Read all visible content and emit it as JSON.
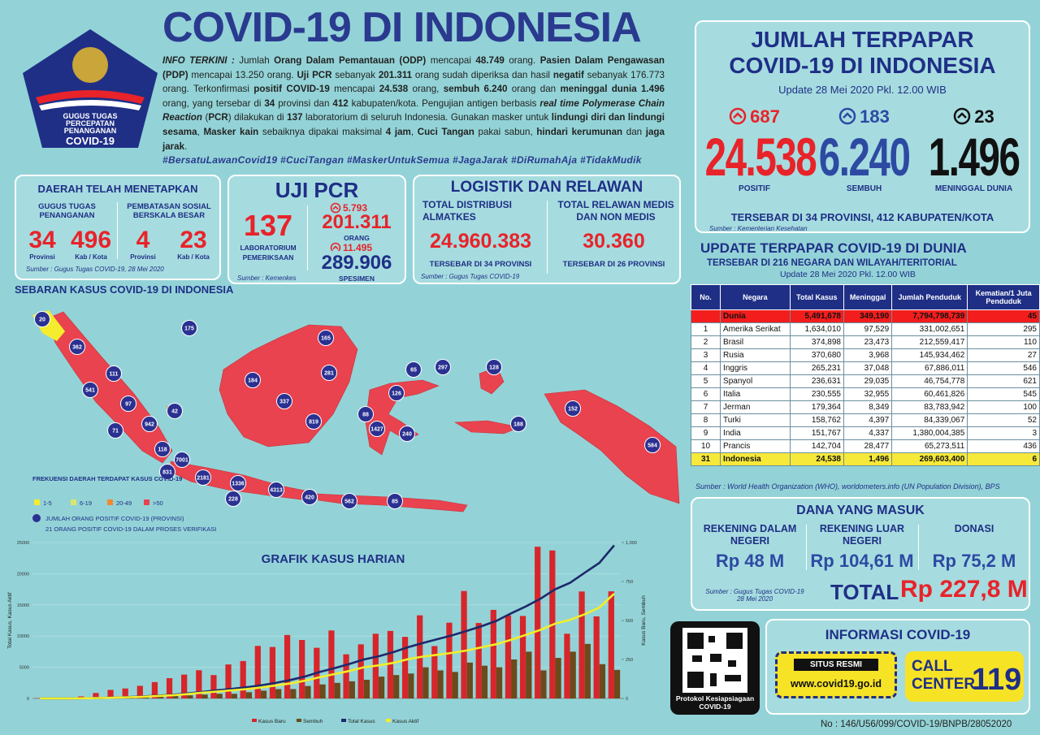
{
  "header": {
    "title": "COVID-19 DI INDONESIA",
    "logo": [
      "GUGUS TUGAS",
      "PERCEPATAN",
      "PENANGANAN",
      "COVID-19"
    ]
  },
  "info": {
    "segments": [
      {
        "t": "INFO TERKINI :",
        "b": true,
        "i": true
      },
      " Jumlah ",
      {
        "t": "Orang Dalam Pemantauan (ODP)",
        "b": true
      },
      " mencapai ",
      {
        "t": "48.749",
        "b": true
      },
      " orang. ",
      {
        "t": "Pasien Dalam Pengawasan (PDP)",
        "b": true
      },
      " mencapai 13.250 orang. ",
      {
        "t": "Uji PCR",
        "b": true
      },
      " sebanyak ",
      {
        "t": "201.311",
        "b": true
      },
      " orang sudah diperiksa dan hasil ",
      {
        "t": "negatif",
        "b": true
      },
      " sebanyak 176.773 orang. Terkonfirmasi ",
      {
        "t": "positif COVID-19",
        "b": true
      },
      " mencapai ",
      {
        "t": "24.538",
        "b": true
      },
      " orang, ",
      {
        "t": "sembuh 6.240",
        "b": true
      },
      " orang dan ",
      {
        "t": "meninggal dunia 1.496",
        "b": true
      },
      " orang, yang tersebar di ",
      {
        "t": "34",
        "b": true
      },
      " provinsi dan ",
      {
        "t": "412",
        "b": true
      },
      " kabupaten/kota. Pengujian antigen berbasis ",
      {
        "t": "real time Polymerase Chain Reaction",
        "b": true,
        "i": true
      },
      " (",
      {
        "t": "PCR",
        "b": true
      },
      ") dilakukan di ",
      {
        "t": "137",
        "b": true
      },
      " laboratorium di seluruh Indonesia. Gunakan masker untuk ",
      {
        "t": "lindungi diri dan lindungi sesama",
        "b": true
      },
      ", ",
      {
        "t": "Masker kain",
        "b": true
      },
      " sebaiknya dipakai maksimal ",
      {
        "t": "4 jam",
        "b": true
      },
      ", ",
      {
        "t": "Cuci Tangan",
        "b": true
      },
      " pakai sabun, ",
      {
        "t": "hindari kerumunan",
        "b": true
      },
      " dan ",
      {
        "t": "jaga jarak",
        "b": true
      },
      "."
    ],
    "hashtags": "#BersatuLawanCovid19 #CuciTangan #MaskerUntukSemua #JagaJarak #DiRumahAja #TidakMudik"
  },
  "daerah": {
    "title": "DAERAH TELAH MENETAPKAN",
    "groups": [
      {
        "label": "GUGUS TUGAS PENANGANAN",
        "items": [
          {
            "value": "34",
            "label": "Provinsi"
          },
          {
            "value": "496",
            "label": "Kab / Kota"
          }
        ]
      },
      {
        "label": "PEMBATASAN SOSIAL BERSKALA BESAR",
        "items": [
          {
            "value": "4",
            "label": "Provinsi"
          },
          {
            "value": "23",
            "label": "Kab / Kota"
          }
        ]
      }
    ],
    "source": "Sumber : Gugus Tugas COVID-19, 28 Mei 2020"
  },
  "uji_pcr": {
    "title": "UJI PCR",
    "labs": "137",
    "labs_label": "LABORATORIUM PEMERIKSAAN",
    "orang_increase": "5.793",
    "orang": "201.311",
    "orang_label": "ORANG",
    "spesimen_increase": "11.495",
    "spesimen": "289.906",
    "spesimen_label": "SPESIMEN",
    "source": "Sumber : Kemenkes"
  },
  "logistik": {
    "title": "LOGISTIK DAN RELAWAN",
    "items": [
      {
        "label": "TOTAL DISTRIBUSI ALMATKES",
        "value": "24.960.383",
        "note": "TERSEBAR DI 34 PROVINSI"
      },
      {
        "label": "TOTAL RELAWAN MEDIS DAN NON MEDIS",
        "value": "30.360",
        "note": "TERSEBAR DI 26 PROVINSI"
      }
    ],
    "source": "Sumber : Gugus Tugas COVID-19"
  },
  "map": {
    "title": "SEBARAN KASUS COVID-19 DI INDONESIA",
    "bubbles": [
      "20",
      "175",
      "362",
      "111",
      "541",
      "97",
      "71",
      "942",
      "42",
      "118",
      "7001",
      "831",
      "2181",
      "1336",
      "228",
      "4313",
      "420",
      "562",
      "85",
      "184",
      "337",
      "819",
      "281",
      "165",
      "65",
      "297",
      "128",
      "126",
      "88",
      "1427",
      "240",
      "188",
      "152",
      "584"
    ],
    "legend_title": "FREKUENSI DAERAH TERDAPAT KASUS COVID-19",
    "legend": [
      {
        "label": "1-5",
        "color": "#f4ec2c"
      },
      {
        "label": "6-19",
        "color": "#d9e86a"
      },
      {
        "label": "20-49",
        "color": "#f0892e"
      },
      {
        "label": ">50",
        "color": "#e8434e"
      }
    ],
    "bubble_label": "JUMLAH ORANG POSITIF COVID-19 (PROVINSI)",
    "verification": "21 ORANG POSITIF COVID-19 DALAM PROSES VERIFIKASI"
  },
  "jumlah": {
    "title": [
      "JUMLAH TERPAPAR",
      "COVID-19 DI INDONESIA"
    ],
    "update": "Update 28 Mei 2020 Pkl. 12.00 WIB",
    "stats": [
      {
        "increase": "687",
        "value": "24.538",
        "label": "POSITIF",
        "color": "#e8232a"
      },
      {
        "increase": "183",
        "value": "6.240",
        "label": "SEMBUH",
        "color": "#2d4aa3"
      },
      {
        "increase": "23",
        "value": "1.496",
        "label": "MENINGGAL DUNIA",
        "color": "#111111"
      }
    ],
    "spread": "TERSEBAR DI 34 PROVINSI, 412 KABUPATEN/KOTA",
    "source": "Sumber : Kementerian Kesehatan"
  },
  "world": {
    "title": "UPDATE TERPAPAR COVID-19 DI DUNIA",
    "subtitle": "TERSEBAR DI 216 NEGARA DAN WILAYAH/TERITORIAL",
    "update": "Update 28 Mei 2020 Pkl. 12.00 WIB",
    "columns": [
      "No.",
      "Negara",
      "Total Kasus",
      "Meninggal",
      "Jumlah Penduduk",
      "Kematian/1 Juta Penduduk"
    ],
    "rows": [
      {
        "cells": [
          null,
          "Dunia",
          "5,491,678",
          "349,190",
          "7,794,798,739",
          "45"
        ],
        "fill": "#f31d1d"
      },
      {
        "cells": [
          "1",
          "Amerika Serikat",
          "1,634,010",
          "97,529",
          "331,002,651",
          "295"
        ]
      },
      {
        "cells": [
          "2",
          "Brasil",
          "374,898",
          "23,473",
          "212,559,417",
          "110"
        ]
      },
      {
        "cells": [
          "3",
          "Rusia",
          "370,680",
          "3,968",
          "145,934,462",
          "27"
        ]
      },
      {
        "cells": [
          "4",
          "Inggris",
          "265,231",
          "37,048",
          "67,886,011",
          "546"
        ]
      },
      {
        "cells": [
          "5",
          "Spanyol",
          "236,631",
          "29,035",
          "46,754,778",
          "621"
        ]
      },
      {
        "cells": [
          "6",
          "Italia",
          "230,555",
          "32,955",
          "60,461,826",
          "545"
        ]
      },
      {
        "cells": [
          "7",
          "Jerman",
          "179,364",
          "8,349",
          "83,783,942",
          "100"
        ]
      },
      {
        "cells": [
          "8",
          "Turki",
          "158,762",
          "4,397",
          "84,339,067",
          "52"
        ]
      },
      {
        "cells": [
          "9",
          "India",
          "151,767",
          "4,337",
          "1,380,004,385",
          "3"
        ]
      },
      {
        "cells": [
          "10",
          "Prancis",
          "142,704",
          "28,477",
          "65,273,511",
          "436"
        ]
      },
      {
        "cells": [
          "31",
          "Indonesia",
          "24,538",
          "1,496",
          "269,603,400",
          "6"
        ],
        "fill": "#f7e93a"
      }
    ],
    "source": "Sumber : World Health Organization (WHO), worldometers.info (UN Population Division), BPS"
  },
  "dana": {
    "title": "DANA YANG MASUK",
    "items": [
      {
        "label": "REKENING DALAM NEGERI",
        "value": "Rp 48 M"
      },
      {
        "label": "REKENING LUAR NEGERI",
        "value": "Rp 104,61 M"
      },
      {
        "label": "DONASI",
        "value": "Rp 75,2 M"
      }
    ],
    "total_label": "TOTAL",
    "total": "Rp 227,8 M",
    "source": "Sumber : Gugus Tugas COVID-19 28 Mei 2020"
  },
  "qr": {
    "caption": "Protokol Kesiapsiagaan COVID-19"
  },
  "informasi": {
    "title": "INFORMASI COVID-19",
    "situs_label": "SITUS RESMI",
    "url": "www.covid19.go.id",
    "call": "CALL",
    "center": "CENTER",
    "number": "119"
  },
  "footer": "No : 146/U56/099/COVID-19/BNPB/28052020",
  "chart_data": {
    "type": "bar-line",
    "title": "GRAFIK KASUS HARIAN",
    "y_label": "Total Kasus, Kasus Aktif",
    "y2_label": "Kasus Baru, Sembuh",
    "categories": [
      null,
      null,
      null,
      null,
      null,
      null,
      null,
      null,
      null,
      null,
      null,
      null,
      null,
      null,
      null,
      null,
      null,
      null,
      null,
      null,
      null,
      null,
      null,
      null,
      null,
      null,
      null,
      null,
      null,
      null,
      null,
      null,
      null,
      null,
      null,
      null,
      null,
      null,
      null,
      null
    ],
    "ylim": [
      0,
      25000
    ],
    "yticks": [
      0,
      5000,
      10000,
      15000,
      20000,
      25000
    ],
    "y2lim": [
      0,
      1000
    ],
    "y2ticks": [
      0,
      250,
      500,
      750,
      {
        "value": 1000,
        "label": "1,000"
      }
    ],
    "series": [
      {
        "name": "Kasus Baru",
        "color": "#d7262b",
        "kind": "bar",
        "axis": "y2",
        "values": [
          2,
          0,
          2,
          13,
          35,
          55,
          64,
          81,
          105,
          130,
          153,
          181,
          150,
          218,
          240,
          337,
          330,
          407,
          375,
          325,
          436,
          283,
          347,
          415,
          433,
          395,
          533,
          336,
          486,
          689,
          484,
          568,
          533,
          529,
          973,
          949,
          415,
          686,
          526,
          687
        ]
      },
      {
        "name": "Sembuh",
        "color": "#6b4a1c",
        "kind": "bar",
        "axis": "y2",
        "values": [
          0,
          0,
          0,
          0,
          2,
          3,
          5,
          8,
          10,
          15,
          20,
          25,
          30,
          30,
          40,
          50,
          60,
          60,
          80,
          90,
          100,
          110,
          120,
          140,
          150,
          160,
          200,
          180,
          170,
          230,
          210,
          200,
          250,
          300,
          180,
          260,
          300,
          350,
          220,
          183
        ]
      },
      {
        "name": "Total Kasus",
        "color": "#1d2a6b",
        "kind": "line",
        "axis": "y",
        "values": [
          2,
          2,
          4,
          27,
          69,
          134,
          227,
          309,
          450,
          579,
          790,
          1046,
          1285,
          1528,
          1790,
          2092,
          2491,
          2956,
          3512,
          4241,
          4839,
          5516,
          6248,
          6760,
          7418,
          8211,
          8882,
          9511,
          10118,
          10843,
          11587,
          12438,
          13645,
          14749,
          16006,
          17514,
          18548,
          20162,
          21745,
          24538
        ]
      },
      {
        "name": "Kasus Aktif",
        "color": "#f2ee2a",
        "kind": "line",
        "axis": "y",
        "values": [
          2,
          2,
          4,
          25,
          60,
          120,
          200,
          270,
          400,
          510,
          690,
          920,
          1100,
          1300,
          1480,
          1740,
          2070,
          2400,
          2850,
          3400,
          3900,
          4400,
          5000,
          5300,
          5700,
          6300,
          6700,
          7000,
          7300,
          7700,
          8200,
          8700,
          9400,
          10200,
          11000,
          12000,
          12600,
          13500,
          14600,
          16802
        ]
      }
    ]
  }
}
